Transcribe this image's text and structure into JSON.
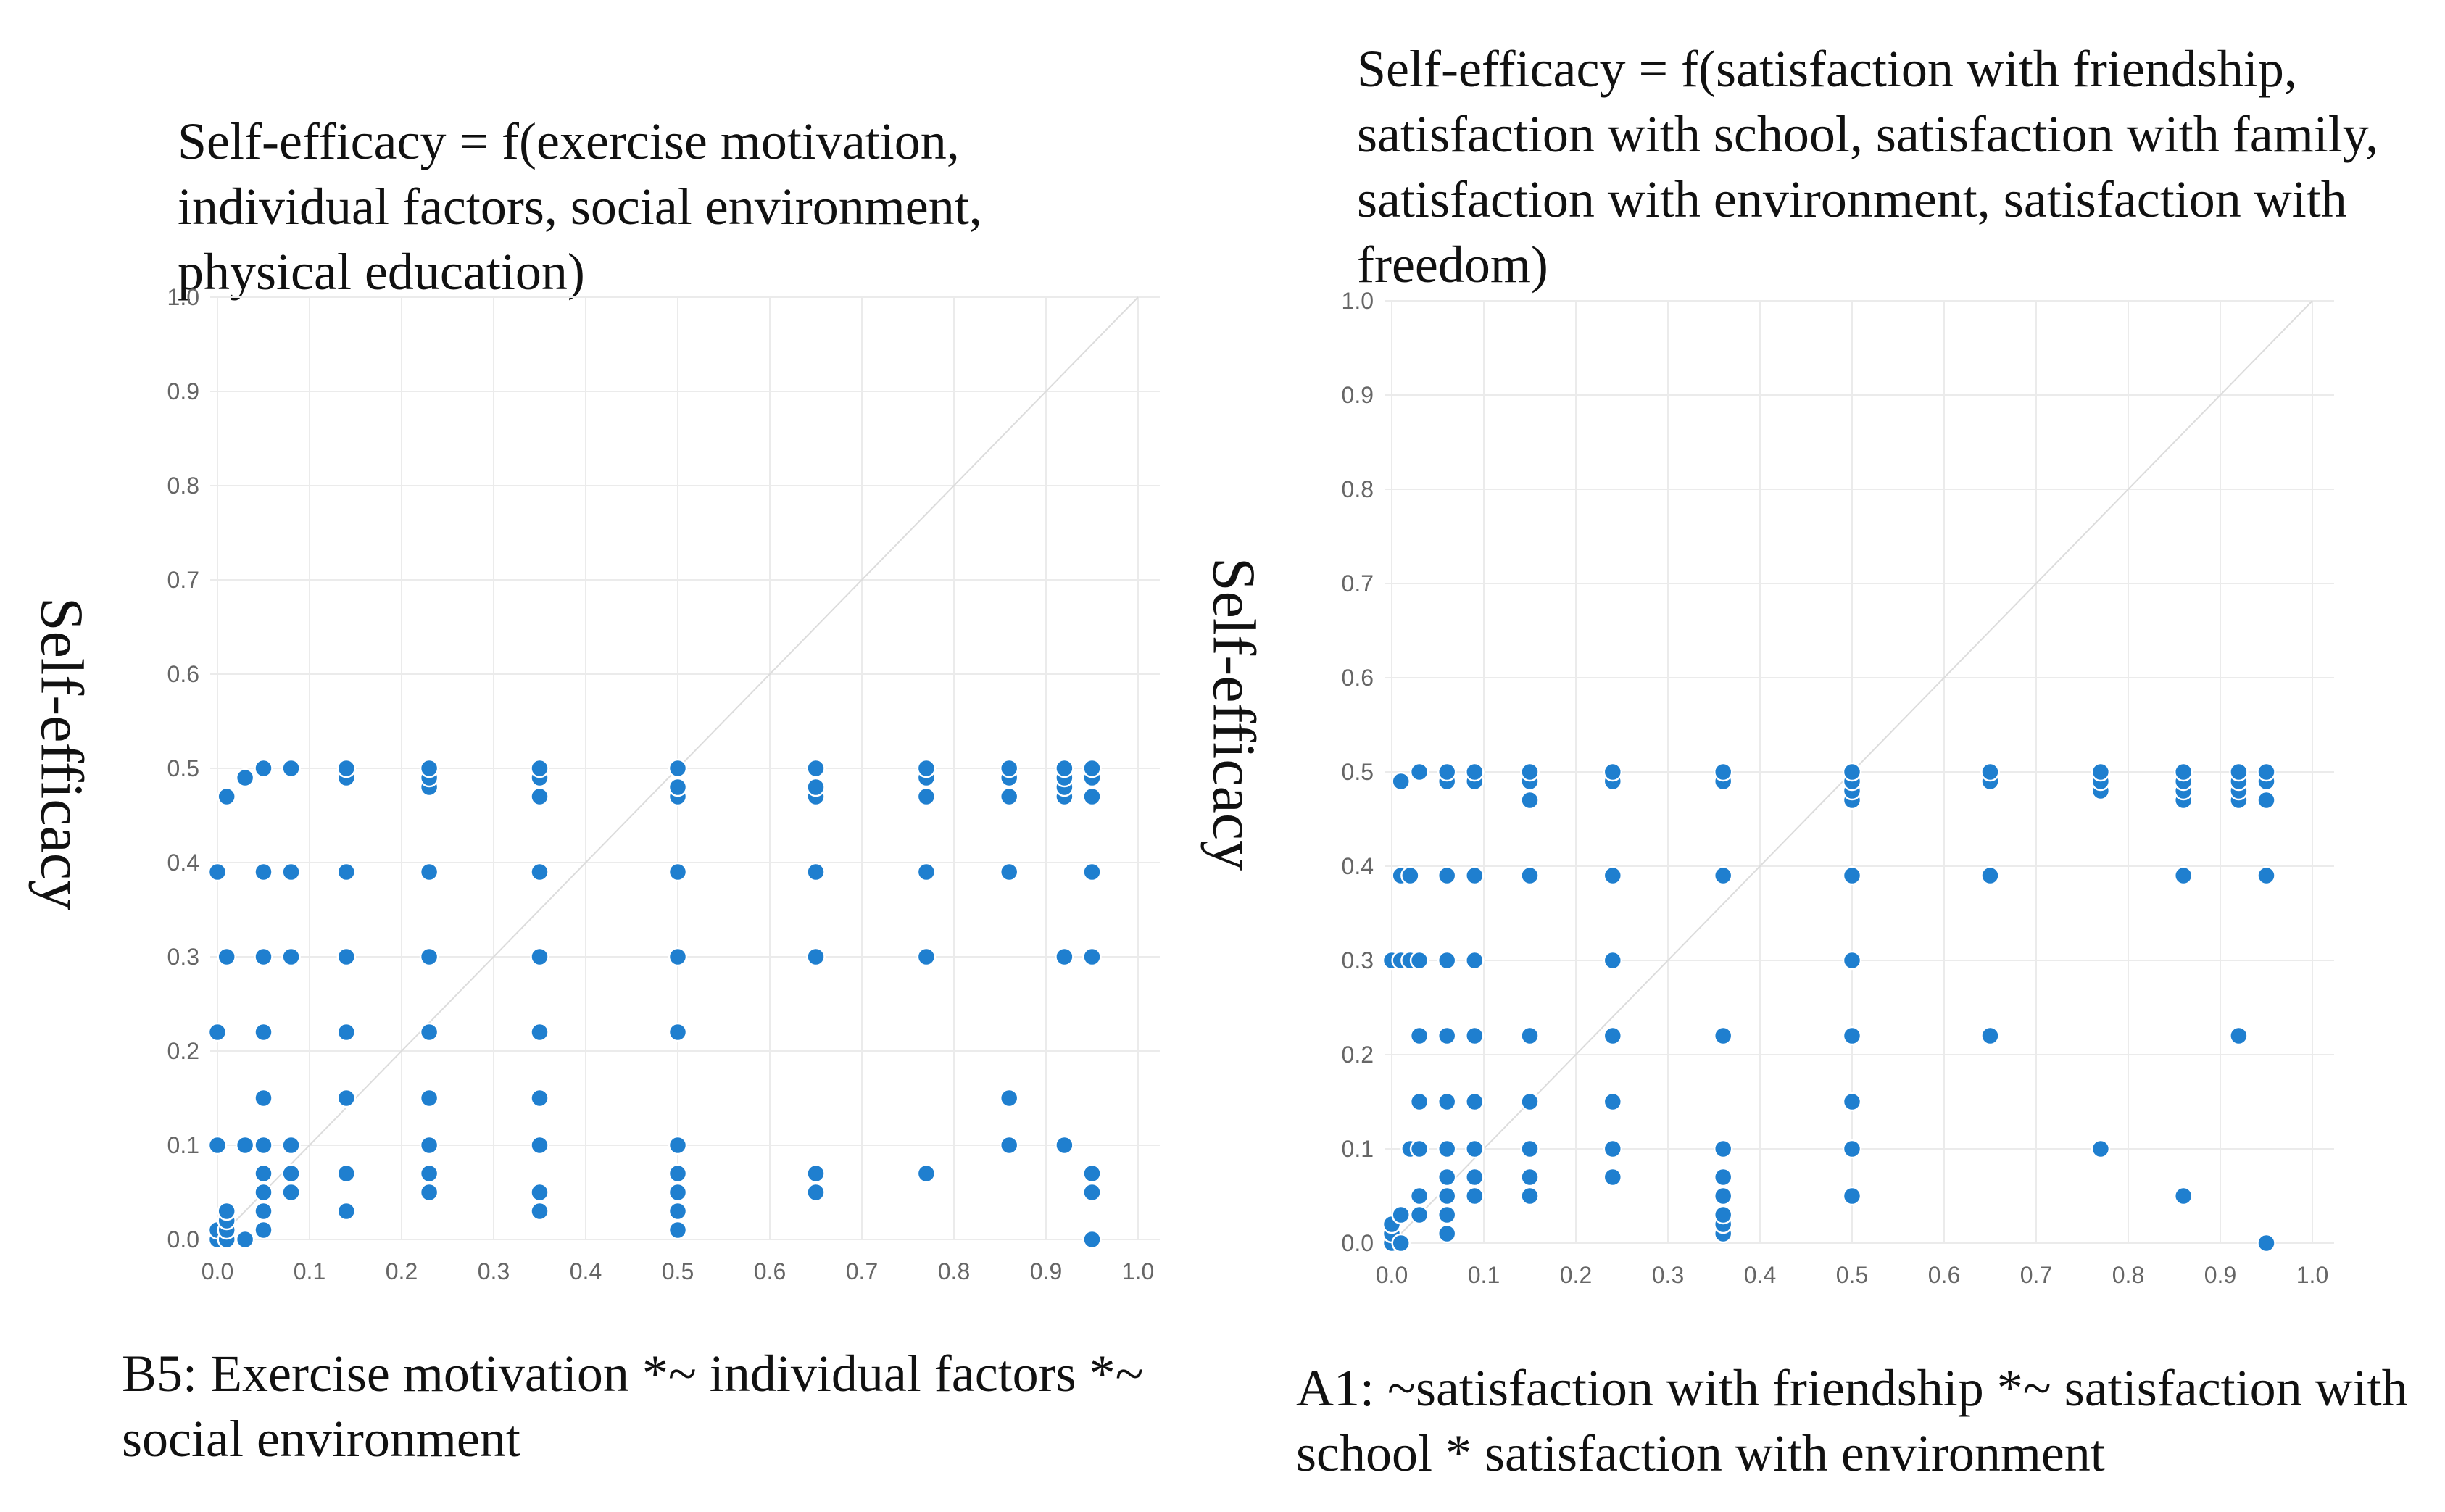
{
  "colors": {
    "point": "#1f7fcf",
    "grid": "#ebebeb",
    "diagonal": "#dcdcdc",
    "tick_text": "#666666"
  },
  "chart_data": [
    {
      "type": "scatter",
      "title": "Self-efficacy = f(exercise motivation, individual factors, social environment, physical education)",
      "ylabel": "Self-efficacy",
      "xlabel": "B5: Exercise motivation *~ individual factors *~ social environment",
      "xlim": [
        0,
        1
      ],
      "ylim": [
        0,
        1
      ],
      "xticks": [
        "0.0",
        "0.1",
        "0.2",
        "0.3",
        "0.4",
        "0.5",
        "0.6",
        "0.7",
        "0.8",
        "0.9",
        "1.0"
      ],
      "yticks": [
        "0.0",
        "0.1",
        "0.2",
        "0.3",
        "0.4",
        "0.5",
        "0.6",
        "0.7",
        "0.8",
        "0.9",
        "1.0"
      ],
      "diagonal": true,
      "points": [
        [
          0.0,
          0.0
        ],
        [
          0.0,
          0.01
        ],
        [
          0.0,
          0.1
        ],
        [
          0.0,
          0.22
        ],
        [
          0.0,
          0.39
        ],
        [
          0.01,
          0.0
        ],
        [
          0.01,
          0.01
        ],
        [
          0.01,
          0.02
        ],
        [
          0.01,
          0.03
        ],
        [
          0.01,
          0.3
        ],
        [
          0.01,
          0.47
        ],
        [
          0.03,
          0.0
        ],
        [
          0.03,
          0.1
        ],
        [
          0.03,
          0.49
        ],
        [
          0.05,
          0.01
        ],
        [
          0.05,
          0.03
        ],
        [
          0.05,
          0.05
        ],
        [
          0.05,
          0.07
        ],
        [
          0.05,
          0.1
        ],
        [
          0.05,
          0.15
        ],
        [
          0.05,
          0.22
        ],
        [
          0.05,
          0.3
        ],
        [
          0.05,
          0.39
        ],
        [
          0.05,
          0.5
        ],
        [
          0.08,
          0.05
        ],
        [
          0.08,
          0.07
        ],
        [
          0.08,
          0.1
        ],
        [
          0.08,
          0.3
        ],
        [
          0.08,
          0.39
        ],
        [
          0.08,
          0.5
        ],
        [
          0.14,
          0.03
        ],
        [
          0.14,
          0.07
        ],
        [
          0.14,
          0.15
        ],
        [
          0.14,
          0.22
        ],
        [
          0.14,
          0.3
        ],
        [
          0.14,
          0.39
        ],
        [
          0.14,
          0.49
        ],
        [
          0.14,
          0.5
        ],
        [
          0.23,
          0.05
        ],
        [
          0.23,
          0.07
        ],
        [
          0.23,
          0.1
        ],
        [
          0.23,
          0.15
        ],
        [
          0.23,
          0.22
        ],
        [
          0.23,
          0.3
        ],
        [
          0.23,
          0.39
        ],
        [
          0.23,
          0.48
        ],
        [
          0.23,
          0.49
        ],
        [
          0.23,
          0.5
        ],
        [
          0.35,
          0.03
        ],
        [
          0.35,
          0.05
        ],
        [
          0.35,
          0.1
        ],
        [
          0.35,
          0.15
        ],
        [
          0.35,
          0.22
        ],
        [
          0.35,
          0.3
        ],
        [
          0.35,
          0.39
        ],
        [
          0.35,
          0.47
        ],
        [
          0.35,
          0.49
        ],
        [
          0.35,
          0.5
        ],
        [
          0.5,
          0.01
        ],
        [
          0.5,
          0.03
        ],
        [
          0.5,
          0.05
        ],
        [
          0.5,
          0.07
        ],
        [
          0.5,
          0.1
        ],
        [
          0.5,
          0.22
        ],
        [
          0.5,
          0.3
        ],
        [
          0.5,
          0.39
        ],
        [
          0.5,
          0.47
        ],
        [
          0.5,
          0.48
        ],
        [
          0.5,
          0.5
        ],
        [
          0.65,
          0.05
        ],
        [
          0.65,
          0.07
        ],
        [
          0.65,
          0.3
        ],
        [
          0.65,
          0.39
        ],
        [
          0.65,
          0.47
        ],
        [
          0.65,
          0.48
        ],
        [
          0.65,
          0.5
        ],
        [
          0.77,
          0.07
        ],
        [
          0.77,
          0.3
        ],
        [
          0.77,
          0.39
        ],
        [
          0.77,
          0.47
        ],
        [
          0.77,
          0.49
        ],
        [
          0.77,
          0.5
        ],
        [
          0.86,
          0.1
        ],
        [
          0.86,
          0.15
        ],
        [
          0.86,
          0.39
        ],
        [
          0.86,
          0.47
        ],
        [
          0.86,
          0.49
        ],
        [
          0.86,
          0.5
        ],
        [
          0.92,
          0.1
        ],
        [
          0.92,
          0.3
        ],
        [
          0.92,
          0.47
        ],
        [
          0.92,
          0.48
        ],
        [
          0.92,
          0.49
        ],
        [
          0.92,
          0.5
        ],
        [
          0.95,
          0.0
        ],
        [
          0.95,
          0.05
        ],
        [
          0.95,
          0.07
        ],
        [
          0.95,
          0.3
        ],
        [
          0.95,
          0.39
        ],
        [
          0.95,
          0.47
        ],
        [
          0.95,
          0.49
        ],
        [
          0.95,
          0.5
        ]
      ]
    },
    {
      "type": "scatter",
      "title": "Self-efficacy = f(satisfaction with friendship, satisfaction with school, satisfaction with family, satisfaction with environment, satisfaction with freedom)",
      "ylabel": "Self-efficacy",
      "xlabel": "A1: ~satisfaction with friendship *~ satisfaction with school * satisfaction with environment",
      "xlim": [
        0,
        1
      ],
      "ylim": [
        0,
        1
      ],
      "xticks": [
        "0.0",
        "0.1",
        "0.2",
        "0.3",
        "0.4",
        "0.5",
        "0.6",
        "0.7",
        "0.8",
        "0.9",
        "1.0"
      ],
      "yticks": [
        "0.0",
        "0.1",
        "0.2",
        "0.3",
        "0.4",
        "0.5",
        "0.6",
        "0.7",
        "0.8",
        "0.9",
        "1.0"
      ],
      "diagonal": true,
      "points": [
        [
          0.0,
          0.0
        ],
        [
          0.0,
          0.01
        ],
        [
          0.0,
          0.02
        ],
        [
          0.0,
          0.3
        ],
        [
          0.01,
          0.0
        ],
        [
          0.01,
          0.03
        ],
        [
          0.01,
          0.3
        ],
        [
          0.01,
          0.39
        ],
        [
          0.01,
          0.49
        ],
        [
          0.02,
          0.1
        ],
        [
          0.02,
          0.3
        ],
        [
          0.02,
          0.39
        ],
        [
          0.03,
          0.03
        ],
        [
          0.03,
          0.05
        ],
        [
          0.03,
          0.1
        ],
        [
          0.03,
          0.15
        ],
        [
          0.03,
          0.22
        ],
        [
          0.03,
          0.3
        ],
        [
          0.03,
          0.5
        ],
        [
          0.06,
          0.01
        ],
        [
          0.06,
          0.03
        ],
        [
          0.06,
          0.05
        ],
        [
          0.06,
          0.07
        ],
        [
          0.06,
          0.1
        ],
        [
          0.06,
          0.15
        ],
        [
          0.06,
          0.22
        ],
        [
          0.06,
          0.3
        ],
        [
          0.06,
          0.39
        ],
        [
          0.06,
          0.49
        ],
        [
          0.06,
          0.5
        ],
        [
          0.09,
          0.05
        ],
        [
          0.09,
          0.07
        ],
        [
          0.09,
          0.1
        ],
        [
          0.09,
          0.15
        ],
        [
          0.09,
          0.22
        ],
        [
          0.09,
          0.3
        ],
        [
          0.09,
          0.39
        ],
        [
          0.09,
          0.49
        ],
        [
          0.09,
          0.5
        ],
        [
          0.15,
          0.05
        ],
        [
          0.15,
          0.07
        ],
        [
          0.15,
          0.1
        ],
        [
          0.15,
          0.15
        ],
        [
          0.15,
          0.22
        ],
        [
          0.15,
          0.39
        ],
        [
          0.15,
          0.47
        ],
        [
          0.15,
          0.49
        ],
        [
          0.15,
          0.5
        ],
        [
          0.24,
          0.07
        ],
        [
          0.24,
          0.1
        ],
        [
          0.24,
          0.15
        ],
        [
          0.24,
          0.22
        ],
        [
          0.24,
          0.3
        ],
        [
          0.24,
          0.39
        ],
        [
          0.24,
          0.49
        ],
        [
          0.24,
          0.5
        ],
        [
          0.36,
          0.01
        ],
        [
          0.36,
          0.02
        ],
        [
          0.36,
          0.03
        ],
        [
          0.36,
          0.05
        ],
        [
          0.36,
          0.07
        ],
        [
          0.36,
          0.1
        ],
        [
          0.36,
          0.22
        ],
        [
          0.36,
          0.39
        ],
        [
          0.36,
          0.49
        ],
        [
          0.36,
          0.5
        ],
        [
          0.5,
          0.05
        ],
        [
          0.5,
          0.1
        ],
        [
          0.5,
          0.15
        ],
        [
          0.5,
          0.22
        ],
        [
          0.5,
          0.3
        ],
        [
          0.5,
          0.39
        ],
        [
          0.5,
          0.47
        ],
        [
          0.5,
          0.48
        ],
        [
          0.5,
          0.49
        ],
        [
          0.5,
          0.5
        ],
        [
          0.65,
          0.22
        ],
        [
          0.65,
          0.39
        ],
        [
          0.65,
          0.49
        ],
        [
          0.65,
          0.5
        ],
        [
          0.77,
          0.1
        ],
        [
          0.77,
          0.48
        ],
        [
          0.77,
          0.49
        ],
        [
          0.77,
          0.5
        ],
        [
          0.86,
          0.05
        ],
        [
          0.86,
          0.39
        ],
        [
          0.86,
          0.47
        ],
        [
          0.86,
          0.48
        ],
        [
          0.86,
          0.49
        ],
        [
          0.86,
          0.5
        ],
        [
          0.92,
          0.22
        ],
        [
          0.92,
          0.47
        ],
        [
          0.92,
          0.48
        ],
        [
          0.92,
          0.49
        ],
        [
          0.92,
          0.5
        ],
        [
          0.95,
          0.0
        ],
        [
          0.95,
          0.39
        ],
        [
          0.95,
          0.47
        ],
        [
          0.95,
          0.49
        ],
        [
          0.95,
          0.5
        ]
      ]
    }
  ]
}
